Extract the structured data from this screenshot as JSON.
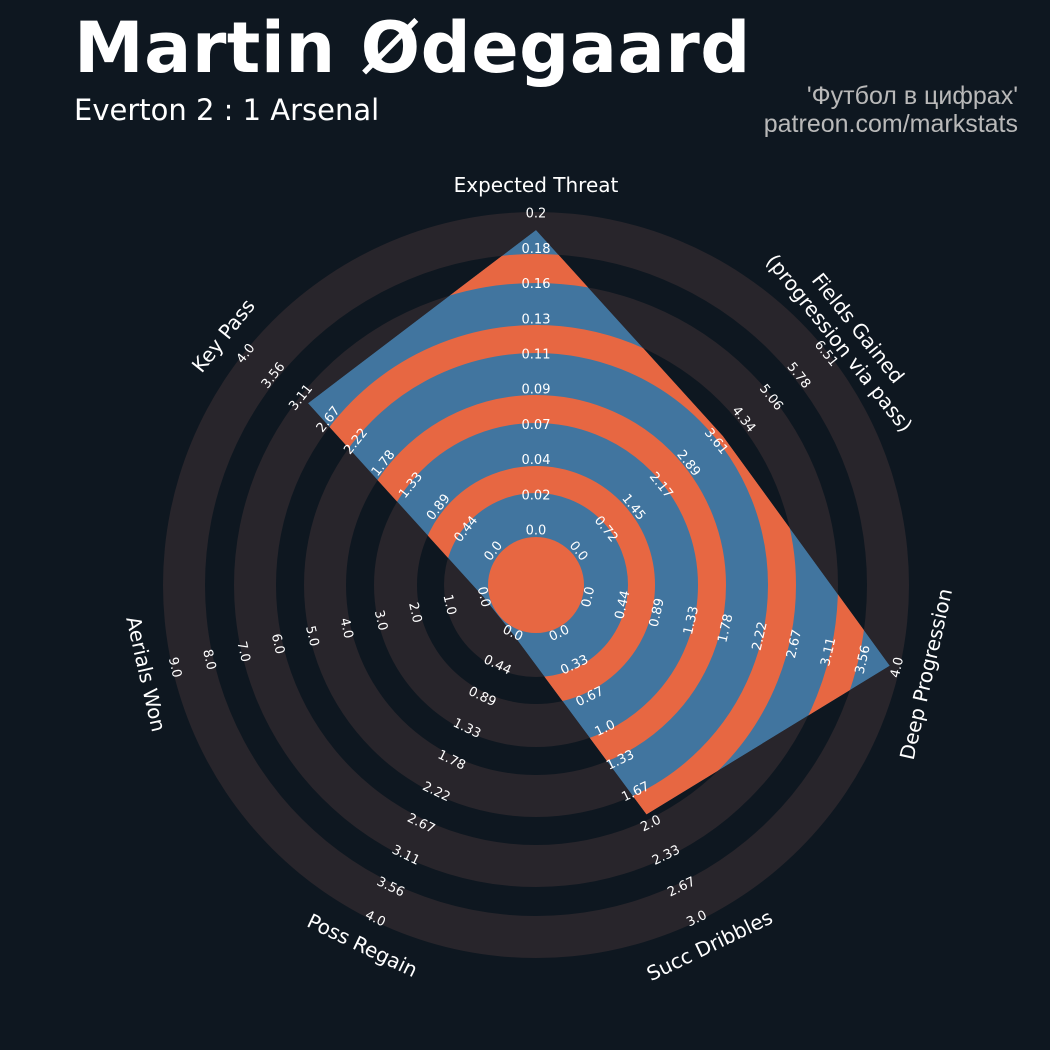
{
  "header": {
    "title": "Martin Ødegaard",
    "subtitle": "Everton 2 : 1 Arsenal",
    "credit_line1": "'Футбол в цифрах'",
    "credit_line2": "patreon.com/markstats"
  },
  "colors": {
    "background": "#0e1720",
    "ring": "#28252b",
    "player_fill": "#41759f",
    "player_rings": "#e76742",
    "text": "#ffffff",
    "credit": "#b9b9b9"
  },
  "chart_data": {
    "type": "radar",
    "title": "Martin Ødegaard",
    "subtitle": "Everton 2 : 1 Arsenal",
    "params": [
      {
        "label": [
          "Expected Threat"
        ],
        "min": 0,
        "max": 0.2,
        "value": 0.19,
        "ticks": [
          "0.0",
          "0.02",
          "0.04",
          "0.07",
          "0.09",
          "0.11",
          "0.13",
          "0.16",
          "0.18",
          "0.2"
        ]
      },
      {
        "label": [
          "Fields Gained",
          "(progression via pass)"
        ],
        "min": 0,
        "max": 6.51,
        "value": 3.8,
        "ticks": [
          "0.0",
          "0.72",
          "1.45",
          "2.17",
          "2.89",
          "3.61",
          "4.34",
          "5.06",
          "5.78",
          "6.51"
        ]
      },
      {
        "label": [
          "Deep Progression"
        ],
        "min": 0,
        "max": 4.0,
        "value": 3.9,
        "ticks": [
          "0.0",
          "0.44",
          "0.89",
          "1.33",
          "1.78",
          "2.22",
          "2.67",
          "3.11",
          "3.56",
          "4.0"
        ]
      },
      {
        "label": [
          "Succ Dribbles"
        ],
        "min": 0,
        "max": 3.0,
        "value": 1.9,
        "ticks": [
          "0.0",
          "0.33",
          "0.67",
          "1.0",
          "1.33",
          "1.67",
          "2.0",
          "2.33",
          "2.67",
          "3.0"
        ]
      },
      {
        "label": [
          "Poss Regain"
        ],
        "min": 0,
        "max": 4.0,
        "value": 0,
        "ticks": [
          "0.0",
          "0.44",
          "0.89",
          "1.33",
          "1.78",
          "2.22",
          "2.67",
          "3.11",
          "3.56",
          "4.0"
        ]
      },
      {
        "label": [
          "Aerials Won"
        ],
        "min": 0,
        "max": 9.0,
        "value": 0,
        "ticks": [
          "0.0",
          "1.0",
          "2.0",
          "3.0",
          "4.0",
          "5.0",
          "6.0",
          "7.0",
          "8.0",
          "9.0"
        ]
      },
      {
        "label": [
          "Key Pass"
        ],
        "min": 0,
        "max": 4.0,
        "value": 3.0,
        "ticks": [
          "0.0",
          "0.44",
          "0.89",
          "1.33",
          "1.78",
          "2.22",
          "2.67",
          "3.11",
          "3.56",
          "4.0"
        ]
      }
    ]
  }
}
